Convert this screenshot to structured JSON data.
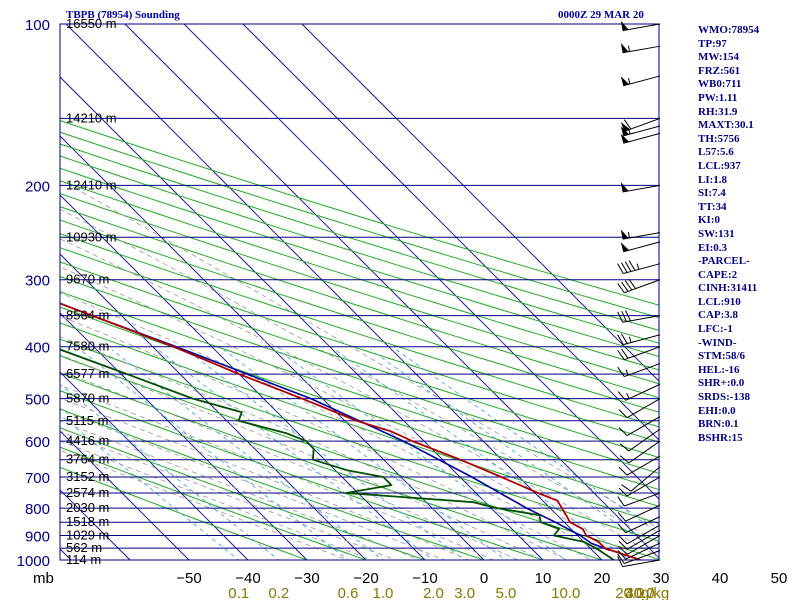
{
  "title": "TBPB (78954) Sounding",
  "datetime": "0000Z 29 MAR 20",
  "pressure_axis_label": "mb",
  "mixing_ratio_unit": "g/kg",
  "indices": [
    "WMO:78954",
    "TP:97",
    "MW:154",
    "FRZ:561",
    "WB0:711",
    "PW:1.11",
    "RH:31.9",
    "MAXT:30.1",
    "TH:5756",
    "L57:5.6",
    "LCL:937",
    "LI:1.8",
    "SI:7.4",
    "TT:34",
    "KI:0",
    "SW:131",
    "EI:0.3",
    "-PARCEL-",
    "CAPE:2",
    "CINH:31411",
    "LCL:910",
    "CAP:3.8",
    "LFC:-1",
    "-WIND-",
    "STM:58/6",
    "HEL:-16",
    "SHR+:0.0",
    "SRDS:-138",
    "EHI:0.0",
    "BRN:0.1",
    "BSHR:15"
  ],
  "colors": {
    "isobar": "#000080",
    "isotherm": "#1a1a9a",
    "dry_adiabat": "#22aa22",
    "moist_adiabat": "#999999",
    "mixing_ratio": "#44aadd",
    "temperature": "#b00000",
    "dewpoint": "#005000",
    "parcel": "#0000a0",
    "pressure_labels": "#000080",
    "mixing_labels": "#887700"
  },
  "chart_data": {
    "type": "line",
    "title": "TBPB (78954) Sounding",
    "subtitle": "0000Z 29 MAR 20",
    "xlabel": "",
    "ylabel": "mb",
    "x_scale": "skew-T",
    "y_scale": "log",
    "xlim": [
      -50,
      50
    ],
    "ylim": [
      1000,
      100
    ],
    "grid": true,
    "pressure_ticks": [
      100,
      200,
      300,
      400,
      500,
      600,
      700,
      800,
      900,
      1000
    ],
    "temperature_ticks": [
      -50,
      -40,
      -30,
      -20,
      -10,
      0,
      10,
      20,
      30,
      40,
      50
    ],
    "height_labels": [
      {
        "p": 100,
        "label": "16550 m"
      },
      {
        "p": 150,
        "label": "14210 m"
      },
      {
        "p": 200,
        "label": "12410 m"
      },
      {
        "p": 250,
        "label": "10930 m"
      },
      {
        "p": 300,
        "label": "9670 m"
      },
      {
        "p": 350,
        "label": "8564 m"
      },
      {
        "p": 400,
        "label": "7580 m"
      },
      {
        "p": 450,
        "label": "6577 m"
      },
      {
        "p": 500,
        "label": "5870 m"
      },
      {
        "p": 550,
        "label": "5115 m"
      },
      {
        "p": 600,
        "label": "4416 m"
      },
      {
        "p": 650,
        "label": "3764 m"
      },
      {
        "p": 700,
        "label": "3152 m"
      },
      {
        "p": 750,
        "label": "2574 m"
      },
      {
        "p": 800,
        "label": "2030 m"
      },
      {
        "p": 850,
        "label": "1518 m"
      },
      {
        "p": 900,
        "label": "1029 m"
      },
      {
        "p": 950,
        "label": "562 m"
      },
      {
        "p": 1000,
        "label": "114 m"
      }
    ],
    "mixing_ratio_labels": [
      "0.1",
      "0.2",
      "0.6",
      "1.0",
      "2.0",
      "3.0",
      "5.0",
      "10.0",
      "20.0",
      "30.0",
      "40.0"
    ],
    "series": [
      {
        "name": "Temperature",
        "points": [
          [
            1000,
            26.5
          ],
          [
            975,
            24.5
          ],
          [
            950,
            22.5
          ],
          [
            925,
            22.5
          ],
          [
            900,
            21.5
          ],
          [
            875,
            22
          ],
          [
            850,
            21
          ],
          [
            825,
            21.5
          ],
          [
            800,
            22
          ],
          [
            775,
            22.5
          ],
          [
            750,
            20.5
          ],
          [
            700,
            17
          ],
          [
            650,
            13
          ],
          [
            600,
            8
          ],
          [
            575,
            6
          ],
          [
            550,
            2
          ],
          [
            500,
            -3.5
          ],
          [
            450,
            -10
          ],
          [
            400,
            -16.5
          ],
          [
            350,
            -25
          ],
          [
            300,
            -35
          ],
          [
            250,
            -45
          ],
          [
            200,
            -55.5
          ],
          [
            175,
            -61
          ],
          [
            150,
            -67.5
          ],
          [
            125,
            -75.5
          ],
          [
            110,
            -79
          ],
          [
            100,
            -79.5
          ]
        ]
      },
      {
        "name": "Dewpoint",
        "points": [
          [
            1000,
            22
          ],
          [
            950,
            21
          ],
          [
            925,
            20
          ],
          [
            900,
            16
          ],
          [
            875,
            18
          ],
          [
            850,
            16
          ],
          [
            825,
            17
          ],
          [
            800,
            11
          ],
          [
            780,
            8
          ],
          [
            750,
            -12
          ],
          [
            725,
            -3
          ],
          [
            700,
            -3
          ],
          [
            680,
            -8
          ],
          [
            650,
            -12
          ],
          [
            620,
            -10
          ],
          [
            600,
            -10
          ],
          [
            580,
            -12
          ],
          [
            550,
            -18
          ],
          [
            530,
            -16
          ],
          [
            500,
            -22
          ],
          [
            450,
            -29
          ],
          [
            400,
            -37
          ],
          [
            350,
            -44
          ],
          [
            300,
            -55
          ],
          [
            250,
            -64
          ],
          [
            200,
            -74
          ],
          [
            150,
            -84
          ],
          [
            130,
            -88
          ],
          [
            120,
            -88
          ],
          [
            110,
            -88
          ],
          [
            100,
            -86
          ]
        ]
      },
      {
        "name": "Parcel",
        "points": [
          [
            960,
            23
          ],
          [
            930,
            21
          ],
          [
            900,
            20.5
          ],
          [
            850,
            18.5
          ],
          [
            800,
            16
          ],
          [
            700,
            12
          ],
          [
            600,
            6.5
          ],
          [
            500,
            -2
          ],
          [
            400,
            -16
          ],
          [
            350,
            -25
          ],
          [
            300,
            -35
          ],
          [
            250,
            -47
          ],
          [
            200,
            -60
          ],
          [
            150,
            -77
          ],
          [
            120,
            -88
          ],
          [
            110,
            -91
          ]
        ]
      }
    ],
    "wind_barbs": [
      {
        "p": 100,
        "dir": 260,
        "kt": 50
      },
      {
        "p": 110,
        "dir": 260,
        "kt": 55
      },
      {
        "p": 125,
        "dir": 255,
        "kt": 55
      },
      {
        "p": 150,
        "dir": 250,
        "kt": 60
      },
      {
        "p": 155,
        "dir": 255,
        "kt": 55
      },
      {
        "p": 160,
        "dir": 255,
        "kt": 50
      },
      {
        "p": 200,
        "dir": 260,
        "kt": 50
      },
      {
        "p": 245,
        "dir": 260,
        "kt": 55
      },
      {
        "p": 255,
        "dir": 255,
        "kt": 50
      },
      {
        "p": 280,
        "dir": 255,
        "kt": 45
      },
      {
        "p": 300,
        "dir": 250,
        "kt": 40
      },
      {
        "p": 350,
        "dir": 260,
        "kt": 30
      },
      {
        "p": 380,
        "dir": 255,
        "kt": 25
      },
      {
        "p": 400,
        "dir": 250,
        "kt": 20
      },
      {
        "p": 430,
        "dir": 250,
        "kt": 15
      },
      {
        "p": 470,
        "dir": 245,
        "kt": 15
      },
      {
        "p": 500,
        "dir": 240,
        "kt": 10
      },
      {
        "p": 540,
        "dir": 240,
        "kt": 10
      },
      {
        "p": 570,
        "dir": 235,
        "kt": 10
      },
      {
        "p": 600,
        "dir": 235,
        "kt": 10
      },
      {
        "p": 640,
        "dir": 240,
        "kt": 10
      },
      {
        "p": 670,
        "dir": 230,
        "kt": 10
      },
      {
        "p": 700,
        "dir": 240,
        "kt": 10
      },
      {
        "p": 750,
        "dir": 250,
        "kt": 10
      },
      {
        "p": 790,
        "dir": 245,
        "kt": 10
      },
      {
        "p": 830,
        "dir": 245,
        "kt": 10
      },
      {
        "p": 860,
        "dir": 240,
        "kt": 10
      },
      {
        "p": 880,
        "dir": 240,
        "kt": 10
      },
      {
        "p": 900,
        "dir": 240,
        "kt": 10
      },
      {
        "p": 930,
        "dir": 245,
        "kt": 10
      },
      {
        "p": 960,
        "dir": 250,
        "kt": 10
      },
      {
        "p": 1000,
        "dir": 260,
        "kt": 10
      }
    ]
  }
}
